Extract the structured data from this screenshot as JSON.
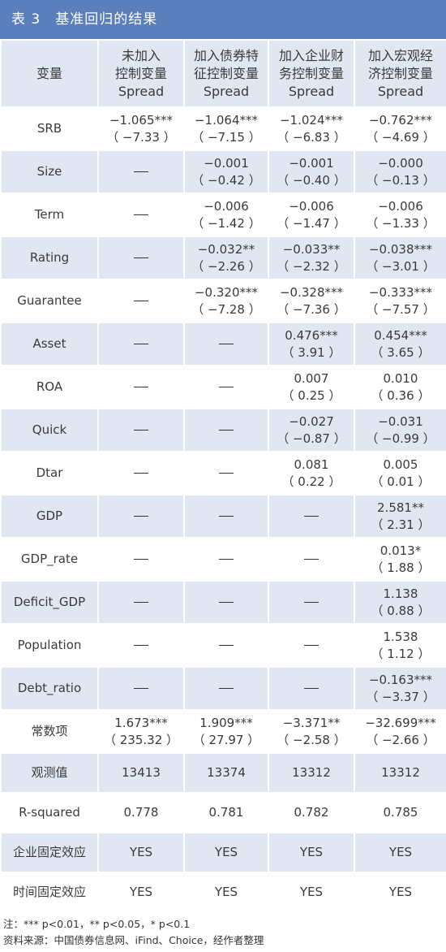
{
  "title": "表 3　基准回归的结果",
  "header": [
    "变量",
    "未加入\n控制变量\nSpread",
    "加入债券特\n征控制变量\nSpread",
    "加入企业财\n务控制变量\nSpread",
    "加入宏观经\n济控制变量\nSpread"
  ],
  "rows": [
    {
      "name": "SRB",
      "cells": [
        [
          "−1.065***",
          "（ −7.33 ）"
        ],
        [
          "−1.064***",
          "（ −7.15 ）"
        ],
        [
          "−1.024***",
          "（ −6.83 ）"
        ],
        [
          "−0.762***",
          "（ −4.69 ）"
        ]
      ]
    },
    {
      "name": "Size",
      "cells": [
        [
          "—"
        ],
        [
          "−0.001",
          "（ −0.42 ）"
        ],
        [
          "−0.001",
          "（ −0.40 ）"
        ],
        [
          "−0.000",
          "（ −0.13 ）"
        ]
      ]
    },
    {
      "name": "Term",
      "cells": [
        [
          "—"
        ],
        [
          "−0.006",
          "（ −1.42 ）"
        ],
        [
          "−0.006",
          "（ −1.47 ）"
        ],
        [
          "−0.006",
          "（ −1.33 ）"
        ]
      ]
    },
    {
      "name": "Rating",
      "cells": [
        [
          "—"
        ],
        [
          "−0.032**",
          "（ −2.26 ）"
        ],
        [
          "−0.033**",
          "（ −2.32 ）"
        ],
        [
          "−0.038***",
          "（ −3.01 ）"
        ]
      ]
    },
    {
      "name": "Guarantee",
      "cells": [
        [
          "—"
        ],
        [
          "−0.320***",
          "（ −7.28 ）"
        ],
        [
          "−0.328***",
          "（ −7.36 ）"
        ],
        [
          "−0.333***",
          "（ −7.57 ）"
        ]
      ]
    },
    {
      "name": "Asset",
      "cells": [
        [
          "—"
        ],
        [
          "—"
        ],
        [
          "0.476***",
          "（ 3.91 ）"
        ],
        [
          "0.454***",
          "（ 3.65 ）"
        ]
      ]
    },
    {
      "name": "ROA",
      "cells": [
        [
          "—"
        ],
        [
          "—"
        ],
        [
          "0.007",
          "（ 0.25 ）"
        ],
        [
          "0.010",
          "（ 0.36 ）"
        ]
      ]
    },
    {
      "name": "Quick",
      "cells": [
        [
          "—"
        ],
        [
          "—"
        ],
        [
          "−0.027",
          "（ −0.87 ）"
        ],
        [
          "−0.031",
          "（ −0.99 ）"
        ]
      ]
    },
    {
      "name": "Dtar",
      "cells": [
        [
          "—"
        ],
        [
          "—"
        ],
        [
          "0.081",
          "（ 0.22 ）"
        ],
        [
          "0.005",
          "（ 0.01 ）"
        ]
      ]
    },
    {
      "name": "GDP",
      "cells": [
        [
          "—"
        ],
        [
          "—"
        ],
        [
          "—"
        ],
        [
          "2.581**",
          "（ 2.31 ）"
        ]
      ]
    },
    {
      "name": "GDP_rate",
      "cells": [
        [
          "—"
        ],
        [
          "—"
        ],
        [
          "—"
        ],
        [
          "0.013*",
          "（ 1.88 ）"
        ]
      ]
    },
    {
      "name": "Deficit_GDP",
      "cells": [
        [
          "—"
        ],
        [
          "—"
        ],
        [
          "—"
        ],
        [
          "1.138",
          "（ 0.88 ）"
        ]
      ]
    },
    {
      "name": "Population",
      "cells": [
        [
          "—"
        ],
        [
          "—"
        ],
        [
          "—"
        ],
        [
          "1.538",
          "（ 1.12 ）"
        ]
      ]
    },
    {
      "name": "Debt_ratio",
      "cells": [
        [
          "—"
        ],
        [
          "—"
        ],
        [
          "—"
        ],
        [
          "−0.163***",
          "（ −3.37 ）"
        ]
      ]
    },
    {
      "name": "常数项",
      "cells": [
        [
          "1.673***",
          "（ 235.32 ）"
        ],
        [
          "1.909***",
          "（ 27.97 ）"
        ],
        [
          "−3.371**",
          "（ −2.58 ）"
        ],
        [
          "−32.699***",
          "（ −2.66 ）"
        ]
      ]
    }
  ],
  "stat_rows": [
    {
      "name": "观测值",
      "cells": [
        "13413",
        "13374",
        "13312",
        "13312"
      ]
    },
    {
      "name": "R-squared",
      "cells": [
        "0.778",
        "0.781",
        "0.782",
        "0.785"
      ]
    },
    {
      "name": "企业固定效应",
      "cells": [
        "YES",
        "YES",
        "YES",
        "YES"
      ]
    },
    {
      "name": "时间固定效应",
      "cells": [
        "YES",
        "YES",
        "YES",
        "YES"
      ]
    }
  ],
  "notes": [
    "注：*** p<0.01，** p<0.05，* p<0.1",
    "资料来源：中国债券信息网、iFind、Choice，经作者整理"
  ],
  "colors": {
    "title_bg": "#5b7fbd",
    "shade": "#e0e7f3"
  }
}
